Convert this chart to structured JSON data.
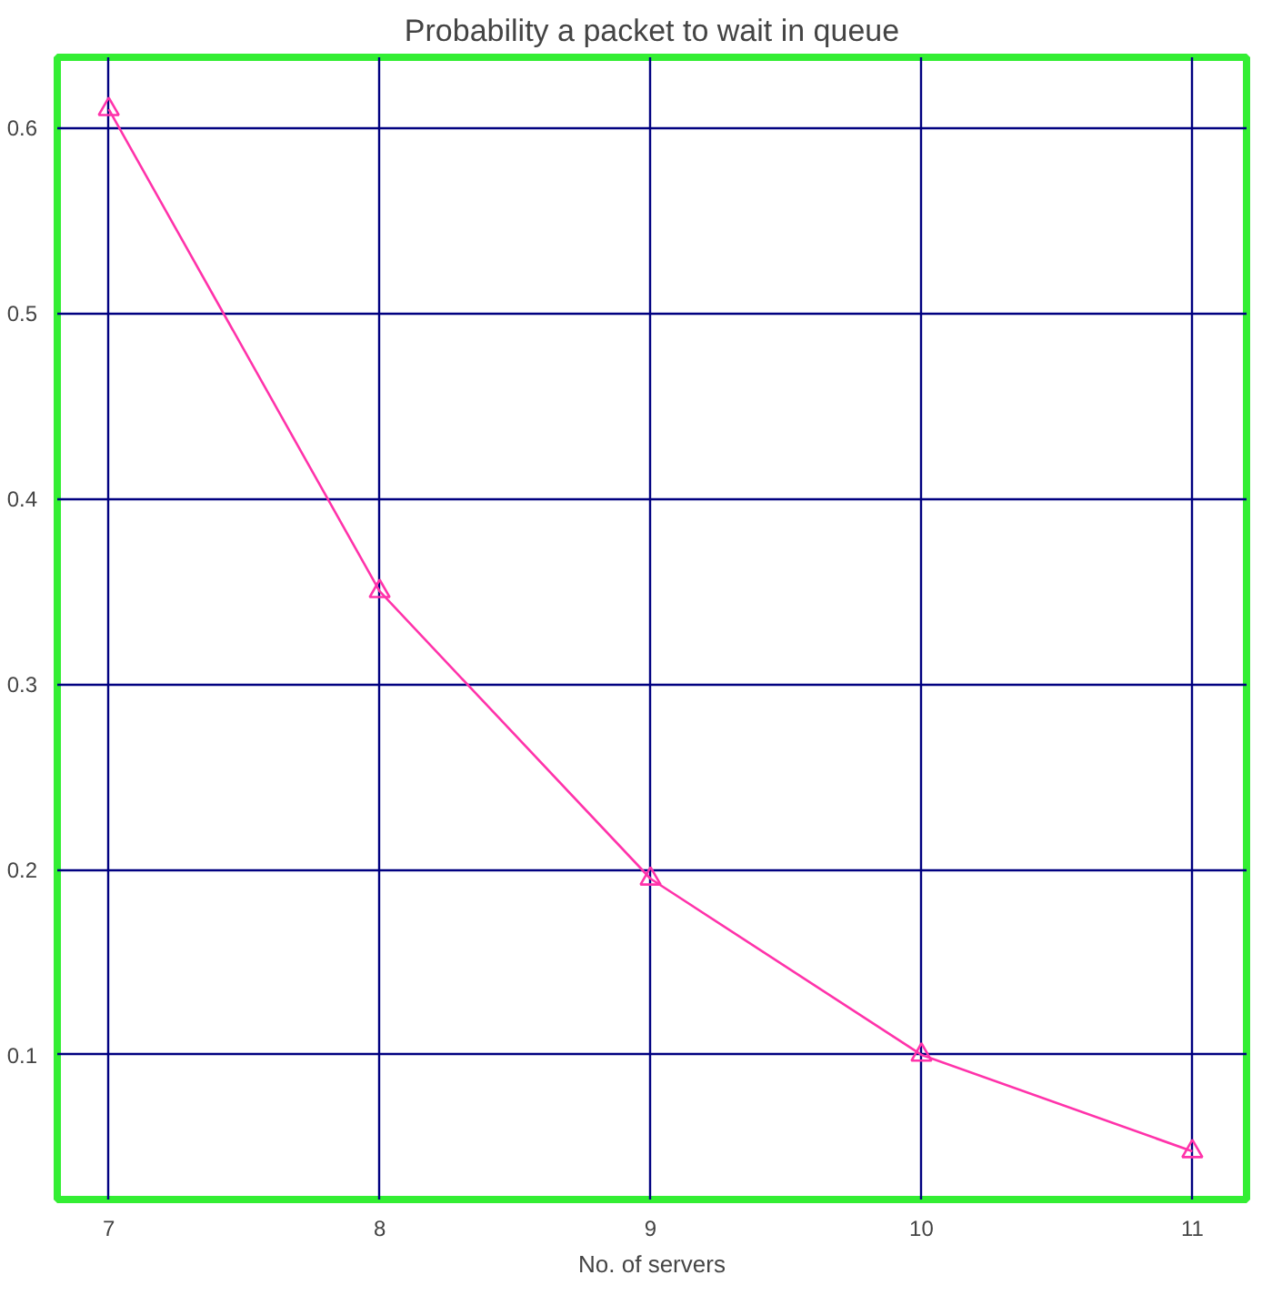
{
  "chart_data": {
    "type": "line",
    "title": "Probability a packet to wait in queue",
    "xlabel": "No. of servers",
    "x": [
      7,
      8,
      9,
      10,
      11
    ],
    "series": [
      {
        "color": "#ff33aa",
        "values": [
          0.61,
          0.35,
          0.195,
          0.1,
          0.048
        ]
      }
    ],
    "xlim": [
      6.81,
      11.2
    ],
    "ylim": [
      0.022,
      0.638
    ],
    "xticks": [
      7,
      8,
      9,
      10,
      11
    ],
    "yticks": [
      0.1,
      0.2,
      0.3,
      0.4,
      0.5,
      0.6
    ],
    "grid": true,
    "marker": "triangle",
    "line_style": "solid"
  }
}
